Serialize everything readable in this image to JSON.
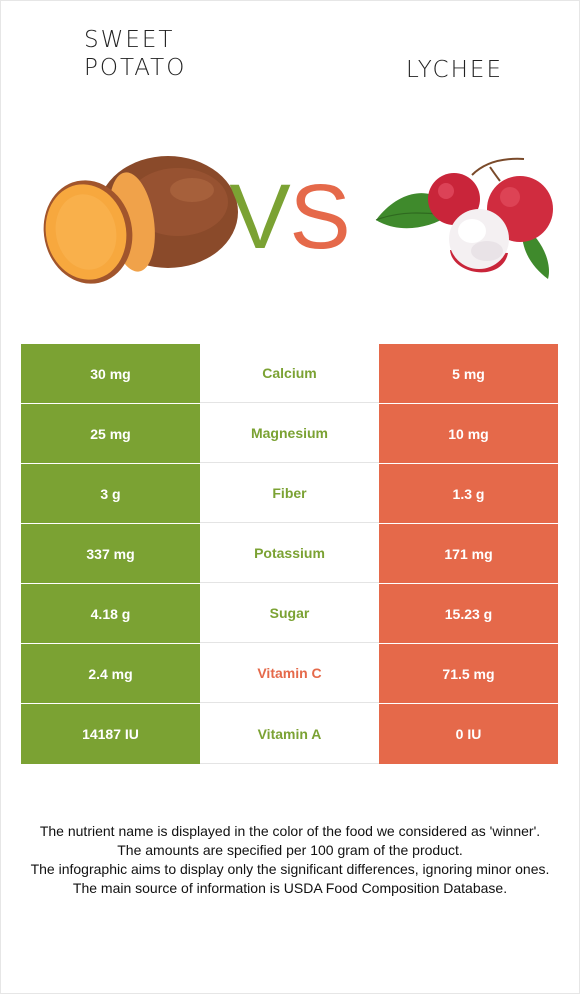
{
  "header": {
    "left_food": "SWEET POTATO",
    "right_food": "LYCHEE",
    "vs_left": "V",
    "vs_right": "S"
  },
  "colors": {
    "left_accent": "#7ba233",
    "right_accent": "#e5694a"
  },
  "images": {
    "left": "sweet-potato-image",
    "right": "lychee-image"
  },
  "rows": [
    {
      "left": "30 mg",
      "nutrient": "Calcium",
      "right": "5 mg",
      "winner": "left"
    },
    {
      "left": "25 mg",
      "nutrient": "Magnesium",
      "right": "10 mg",
      "winner": "left"
    },
    {
      "left": "3 g",
      "nutrient": "Fiber",
      "right": "1.3 g",
      "winner": "left"
    },
    {
      "left": "337 mg",
      "nutrient": "Potassium",
      "right": "171 mg",
      "winner": "left"
    },
    {
      "left": "4.18 g",
      "nutrient": "Sugar",
      "right": "15.23 g",
      "winner": "left"
    },
    {
      "left": "2.4 mg",
      "nutrient": "Vitamin C",
      "right": "71.5 mg",
      "winner": "right"
    },
    {
      "left": "14187 IU",
      "nutrient": "Vitamin A",
      "right": "0 IU",
      "winner": "left"
    }
  ],
  "notes": [
    "The nutrient name is displayed in the color of the food we considered as 'winner'.",
    "The amounts are specified per 100 gram of the product.",
    "The infographic aims to display only the significant differences, ignoring minor ones.",
    "The main source of information is USDA Food Composition Database."
  ]
}
